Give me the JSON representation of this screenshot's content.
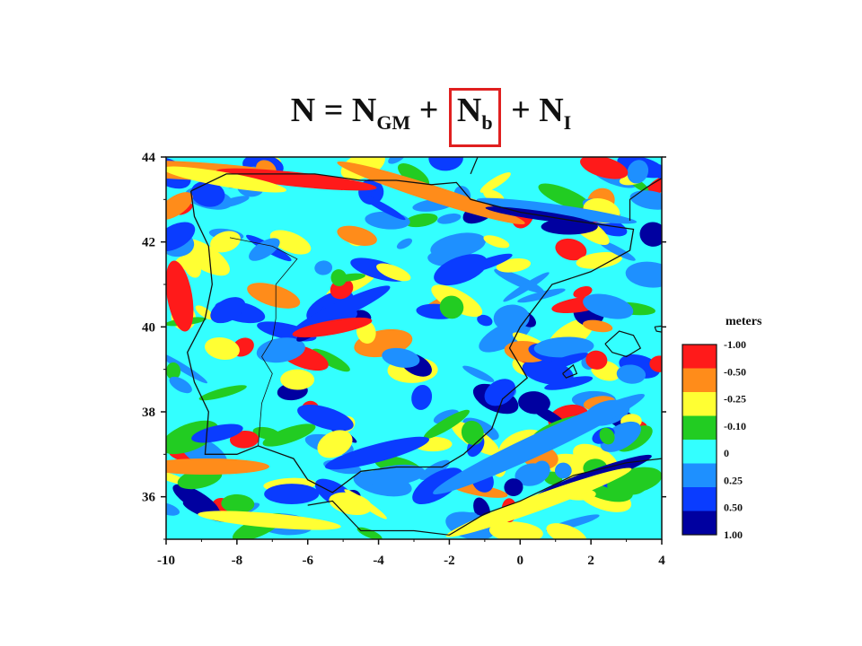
{
  "equation": {
    "N": "N",
    "eq": " = ",
    "ngm_main": "N",
    "ngm_sub": "GM",
    "plus1": " + ",
    "nb_main": "N",
    "nb_sub": "b",
    "plus2": " + ",
    "ni_main": "N",
    "ni_sub": "I",
    "highlight_color": "#e02020"
  },
  "chart_data": {
    "type": "heatmap",
    "title": "",
    "xlabel": "",
    "ylabel": "",
    "xlim": [
      -10,
      4
    ],
    "ylim": [
      35,
      44
    ],
    "x_ticks": [
      -10,
      -8,
      -6,
      -4,
      -2,
      0,
      2,
      4
    ],
    "y_ticks": [
      36,
      38,
      40,
      42,
      44
    ],
    "colorbar": {
      "title": "meters",
      "levels": [
        "-1.00",
        "-0.50",
        "-0.25",
        "-0.10",
        "0",
        "0.25",
        "0.50",
        "1.00"
      ],
      "colors": [
        "#ff1a1a",
        "#ff8c1a",
        "#ffff33",
        "#22cc22",
        "#33ffff",
        "#1e90ff",
        "#0a3cff",
        "#0000a0"
      ]
    }
  }
}
